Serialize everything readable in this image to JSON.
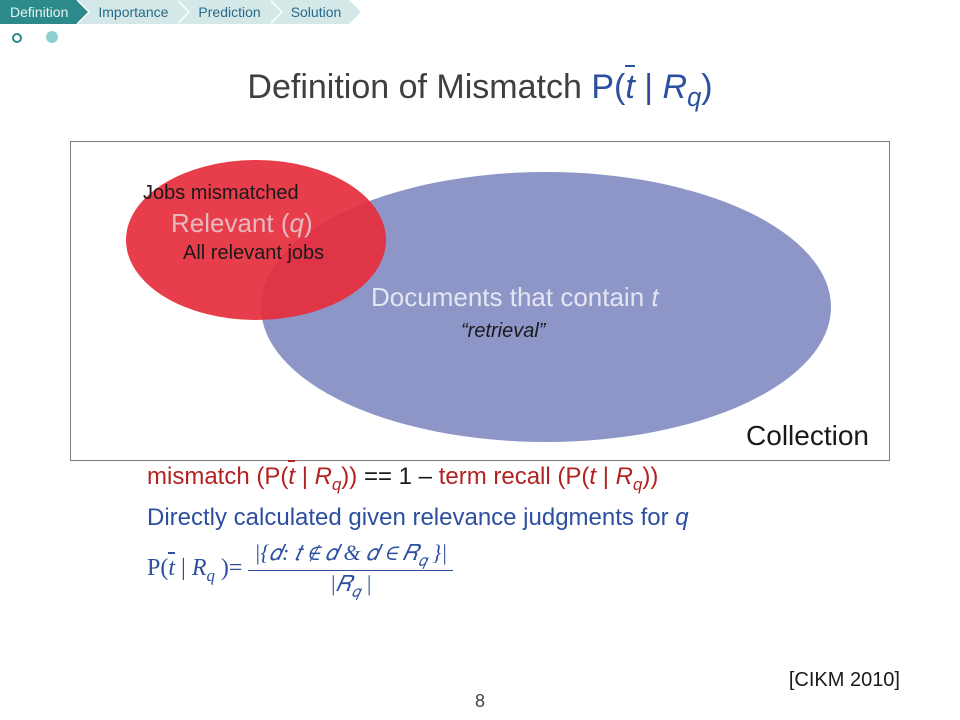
{
  "nav": {
    "items": [
      "Definition",
      "Importance",
      "Prediction",
      "Solution"
    ],
    "active_index": 0,
    "active_bg": "#2d8a8a",
    "inactive_bg": "#d4e8e8",
    "text_active": "#e6f5f5",
    "text_inactive": "#286a8a"
  },
  "title": {
    "prefix": "Definition of Mismatch ",
    "p_open": "P(",
    "t_sym": "t",
    "mid": " | ",
    "R": "R",
    "q_sub": "q",
    "close": ")",
    "color_main": "#3f3f3f",
    "color_blue": "#2c4fa0",
    "fontsize": 34
  },
  "diagram": {
    "box_border": "#7a7a7a",
    "collection_label": "Collection",
    "blue_ellipse": {
      "label_prefix": "Documents that contain ",
      "label_t": "t",
      "sub_label": "“retrieval”",
      "fill": "rgba(110,120,185,0.78)"
    },
    "red_ellipse": {
      "top_label": "Jobs mismatched",
      "mid_prefix": "Relevant (",
      "mid_q": "q",
      "mid_suffix": ")",
      "bottom_label": "All relevant jobs",
      "fill": "rgba(230,45,60,0.92)"
    }
  },
  "line_red": {
    "mismatch_word": "mismatch",
    "open": " (P(",
    "t_sym": "t",
    "mid": " | R",
    "q_sub": "q",
    "close": ")) ",
    "eqsym": "==",
    "one_minus": " 1 – ",
    "recall_word": "term recall",
    "open2": " (P(",
    "t2": "t",
    "mid2": " | R",
    "q2": "q",
    "close2": "))",
    "color": "#b22222"
  },
  "line2": {
    "text_prefix": "Directly calculated given relevance judgments for ",
    "q": "q",
    "color": "#2c4fa0"
  },
  "formula": {
    "P": "P(",
    "t_sym": "t",
    "mid": " | ",
    "R": "R",
    "q_sub": "q",
    "close_eq": " )=",
    "numerator": "|{d: t ∉ d  &  d ∈ R_q }|",
    "denominator": "|R_q |",
    "numerator_display": "|{𝑑: 𝑡 ∉ 𝑑  &  𝑑 ∈ 𝑅",
    "numerator_q": "𝑞",
    "numerator_end": " }|",
    "denominator_display_pre": "|𝑅",
    "denominator_q": "𝑞",
    "denominator_display_post": " |",
    "color": "#2c4fa0"
  },
  "citation": "[CIKM 2010]",
  "page_number": "8"
}
